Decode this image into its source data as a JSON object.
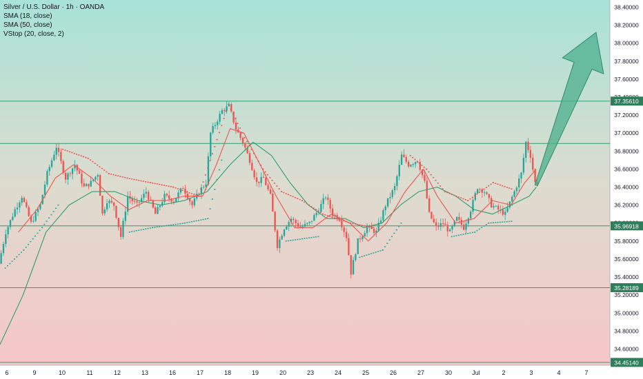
{
  "chart_data": {
    "type": "candlestick",
    "title": "Silver / U.S. Dollar · 1h · OANDA",
    "indicators": [
      "SMA (18, close)",
      "SMA (50, close)",
      "VStop (20, close, 2)"
    ],
    "y_ticks": [
      "38.40000",
      "38.20000",
      "38.00000",
      "37.80000",
      "37.60000",
      "37.40000",
      "37.20000",
      "37.00000",
      "36.80000",
      "36.60000",
      "36.40000",
      "36.20000",
      "36.00000",
      "35.80000",
      "35.60000",
      "35.40000",
      "35.20000",
      "35.00000",
      "34.80000",
      "34.60000"
    ],
    "y_range": [
      34.42,
      38.48
    ],
    "x_ticks": [
      "6",
      "9",
      "10",
      "11",
      "12",
      "13",
      "16",
      "17",
      "18",
      "19",
      "20",
      "23",
      "24",
      "25",
      "26",
      "27",
      "30",
      "Jul",
      "2",
      "3",
      "4",
      "7"
    ],
    "horizontal_levels": [
      {
        "value": 37.3561,
        "label": "37.35610"
      },
      {
        "value": 36.885,
        "label": ""
      },
      {
        "value": 35.96918,
        "label": "35.96918"
      },
      {
        "value": 35.28189,
        "label": "35.28189"
      },
      {
        "value": 34.4514,
        "label": "34.45140"
      }
    ],
    "price_path": [
      {
        "x": 0,
        "y": 35.55
      },
      {
        "x": 3,
        "y": 35.9
      },
      {
        "x": 7,
        "y": 36.15
      },
      {
        "x": 10,
        "y": 36.3
      },
      {
        "x": 14,
        "y": 36.0
      },
      {
        "x": 18,
        "y": 36.2
      },
      {
        "x": 21,
        "y": 36.55
      },
      {
        "x": 25,
        "y": 36.85
      },
      {
        "x": 29,
        "y": 36.5
      },
      {
        "x": 33,
        "y": 36.65
      },
      {
        "x": 37,
        "y": 36.4
      },
      {
        "x": 40,
        "y": 36.45
      },
      {
        "x": 43,
        "y": 36.55
      },
      {
        "x": 45,
        "y": 36.1
      },
      {
        "x": 47,
        "y": 36.25
      },
      {
        "x": 50,
        "y": 36.2
      },
      {
        "x": 53,
        "y": 35.85
      },
      {
        "x": 56,
        "y": 36.3
      },
      {
        "x": 60,
        "y": 36.2
      },
      {
        "x": 64,
        "y": 36.35
      },
      {
        "x": 68,
        "y": 36.1
      },
      {
        "x": 72,
        "y": 36.3
      },
      {
        "x": 76,
        "y": 36.25
      },
      {
        "x": 80,
        "y": 36.4
      },
      {
        "x": 84,
        "y": 36.2
      },
      {
        "x": 87,
        "y": 36.35
      },
      {
        "x": 90,
        "y": 36.45
      },
      {
        "x": 92,
        "y": 37.0
      },
      {
        "x": 94,
        "y": 37.1
      },
      {
        "x": 97,
        "y": 37.25
      },
      {
        "x": 100,
        "y": 37.3
      },
      {
        "x": 103,
        "y": 37.05
      },
      {
        "x": 106,
        "y": 36.9
      },
      {
        "x": 109,
        "y": 36.7
      },
      {
        "x": 112,
        "y": 36.45
      },
      {
        "x": 115,
        "y": 36.5
      },
      {
        "x": 118,
        "y": 36.3
      },
      {
        "x": 121,
        "y": 35.75
      },
      {
        "x": 124,
        "y": 35.95
      },
      {
        "x": 127,
        "y": 36.05
      },
      {
        "x": 131,
        "y": 35.95
      },
      {
        "x": 135,
        "y": 36.0
      },
      {
        "x": 139,
        "y": 36.15
      },
      {
        "x": 142,
        "y": 36.3
      },
      {
        "x": 145,
        "y": 36.1
      },
      {
        "x": 148,
        "y": 36.05
      },
      {
        "x": 151,
        "y": 35.85
      },
      {
        "x": 153,
        "y": 35.45
      },
      {
        "x": 156,
        "y": 35.8
      },
      {
        "x": 160,
        "y": 35.95
      },
      {
        "x": 164,
        "y": 35.9
      },
      {
        "x": 168,
        "y": 36.2
      },
      {
        "x": 172,
        "y": 36.4
      },
      {
        "x": 175,
        "y": 36.75
      },
      {
        "x": 178,
        "y": 36.65
      },
      {
        "x": 182,
        "y": 36.7
      },
      {
        "x": 185,
        "y": 36.45
      },
      {
        "x": 187,
        "y": 36.1
      },
      {
        "x": 190,
        "y": 35.95
      },
      {
        "x": 193,
        "y": 36.0
      },
      {
        "x": 196,
        "y": 35.9
      },
      {
        "x": 199,
        "y": 36.05
      },
      {
        "x": 202,
        "y": 35.95
      },
      {
        "x": 205,
        "y": 36.15
      },
      {
        "x": 208,
        "y": 36.4
      },
      {
        "x": 211,
        "y": 36.35
      },
      {
        "x": 214,
        "y": 36.2
      },
      {
        "x": 217,
        "y": 36.15
      },
      {
        "x": 220,
        "y": 36.1
      },
      {
        "x": 224,
        "y": 36.35
      },
      {
        "x": 227,
        "y": 36.55
      },
      {
        "x": 229,
        "y": 36.9
      },
      {
        "x": 231,
        "y": 36.75
      },
      {
        "x": 233,
        "y": 36.45
      }
    ],
    "sma18": [
      {
        "x": 8,
        "y": 35.9
      },
      {
        "x": 16,
        "y": 36.15
      },
      {
        "x": 24,
        "y": 36.5
      },
      {
        "x": 32,
        "y": 36.65
      },
      {
        "x": 40,
        "y": 36.5
      },
      {
        "x": 48,
        "y": 36.3
      },
      {
        "x": 56,
        "y": 36.15
      },
      {
        "x": 64,
        "y": 36.25
      },
      {
        "x": 72,
        "y": 36.25
      },
      {
        "x": 80,
        "y": 36.3
      },
      {
        "x": 88,
        "y": 36.3
      },
      {
        "x": 94,
        "y": 36.65
      },
      {
        "x": 100,
        "y": 37.05
      },
      {
        "x": 106,
        "y": 37.0
      },
      {
        "x": 112,
        "y": 36.7
      },
      {
        "x": 120,
        "y": 36.3
      },
      {
        "x": 128,
        "y": 35.95
      },
      {
        "x": 136,
        "y": 35.95
      },
      {
        "x": 144,
        "y": 36.1
      },
      {
        "x": 152,
        "y": 36.0
      },
      {
        "x": 160,
        "y": 35.8
      },
      {
        "x": 168,
        "y": 36.0
      },
      {
        "x": 176,
        "y": 36.35
      },
      {
        "x": 184,
        "y": 36.6
      },
      {
        "x": 190,
        "y": 36.3
      },
      {
        "x": 198,
        "y": 36.0
      },
      {
        "x": 206,
        "y": 36.05
      },
      {
        "x": 214,
        "y": 36.25
      },
      {
        "x": 222,
        "y": 36.2
      },
      {
        "x": 228,
        "y": 36.45
      },
      {
        "x": 233,
        "y": 36.6
      }
    ],
    "sma50": [
      {
        "x": 0,
        "y": 34.65
      },
      {
        "x": 10,
        "y": 35.2
      },
      {
        "x": 20,
        "y": 35.9
      },
      {
        "x": 30,
        "y": 36.2
      },
      {
        "x": 40,
        "y": 36.35
      },
      {
        "x": 50,
        "y": 36.35
      },
      {
        "x": 60,
        "y": 36.25
      },
      {
        "x": 70,
        "y": 36.2
      },
      {
        "x": 80,
        "y": 36.25
      },
      {
        "x": 90,
        "y": 36.35
      },
      {
        "x": 100,
        "y": 36.65
      },
      {
        "x": 110,
        "y": 36.9
      },
      {
        "x": 118,
        "y": 36.75
      },
      {
        "x": 126,
        "y": 36.45
      },
      {
        "x": 134,
        "y": 36.2
      },
      {
        "x": 142,
        "y": 36.05
      },
      {
        "x": 150,
        "y": 36.05
      },
      {
        "x": 158,
        "y": 35.95
      },
      {
        "x": 166,
        "y": 36.0
      },
      {
        "x": 174,
        "y": 36.2
      },
      {
        "x": 182,
        "y": 36.35
      },
      {
        "x": 190,
        "y": 36.4
      },
      {
        "x": 198,
        "y": 36.3
      },
      {
        "x": 206,
        "y": 36.15
      },
      {
        "x": 214,
        "y": 36.1
      },
      {
        "x": 222,
        "y": 36.2
      },
      {
        "x": 230,
        "y": 36.3
      },
      {
        "x": 233,
        "y": 36.4
      }
    ],
    "vstop_red": [
      {
        "x": 27,
        "y": 36.82
      },
      {
        "x": 38,
        "y": 36.72
      },
      {
        "x": 47,
        "y": 36.55
      },
      {
        "x": 55,
        "y": 36.5
      },
      {
        "x": 65,
        "y": 36.45
      },
      {
        "x": 75,
        "y": 36.4
      },
      {
        "x": 86,
        "y": 36.3
      },
      {
        "x": 99,
        "y": 37.32
      },
      {
        "x": 106,
        "y": 36.95
      },
      {
        "x": 114,
        "y": 36.6
      },
      {
        "x": 122,
        "y": 36.35
      },
      {
        "x": 131,
        "y": 36.25
      },
      {
        "x": 140,
        "y": 36.1
      },
      {
        "x": 152,
        "y": 36.0
      },
      {
        "x": 162,
        "y": 35.95
      },
      {
        "x": 178,
        "y": 36.75
      },
      {
        "x": 185,
        "y": 36.6
      },
      {
        "x": 193,
        "y": 36.35
      },
      {
        "x": 203,
        "y": 36.25
      },
      {
        "x": 214,
        "y": 36.45
      },
      {
        "x": 222,
        "y": 36.38
      }
    ],
    "vstop_green": [
      {
        "x": 2,
        "y": 35.5
      },
      {
        "x": 10,
        "y": 35.7
      },
      {
        "x": 18,
        "y": 35.95
      },
      {
        "x": 25,
        "y": 36.2
      },
      {
        "x": 56,
        "y": 35.9
      },
      {
        "x": 66,
        "y": 35.95
      },
      {
        "x": 80,
        "y": 36.0
      },
      {
        "x": 90,
        "y": 36.05
      },
      {
        "x": 96,
        "y": 36.7
      },
      {
        "x": 124,
        "y": 35.8
      },
      {
        "x": 138,
        "y": 35.85
      },
      {
        "x": 156,
        "y": 35.62
      },
      {
        "x": 166,
        "y": 35.7
      },
      {
        "x": 174,
        "y": 36.0
      },
      {
        "x": 196,
        "y": 35.85
      },
      {
        "x": 206,
        "y": 35.9
      },
      {
        "x": 212,
        "y": 36.0
      },
      {
        "x": 222,
        "y": 36.02
      }
    ],
    "projection_arrow": {
      "from": {
        "x": 233,
        "y": 36.42
      },
      "to": {
        "x": 259,
        "y": 38.12
      },
      "color": "#4caf8e"
    },
    "x_range": [
      0,
      265
    ],
    "grid": false,
    "legend": "top-left",
    "colors": {
      "up": "#26a69a",
      "down": "#ef5350",
      "sma18": "#ef5350",
      "sma50": "#2e9e6e",
      "levels": "#2e9e6e",
      "level_label_bg": "#2e7d5b",
      "background_top": "#a7e3d6",
      "background_bottom": "#f7c6c8"
    }
  }
}
